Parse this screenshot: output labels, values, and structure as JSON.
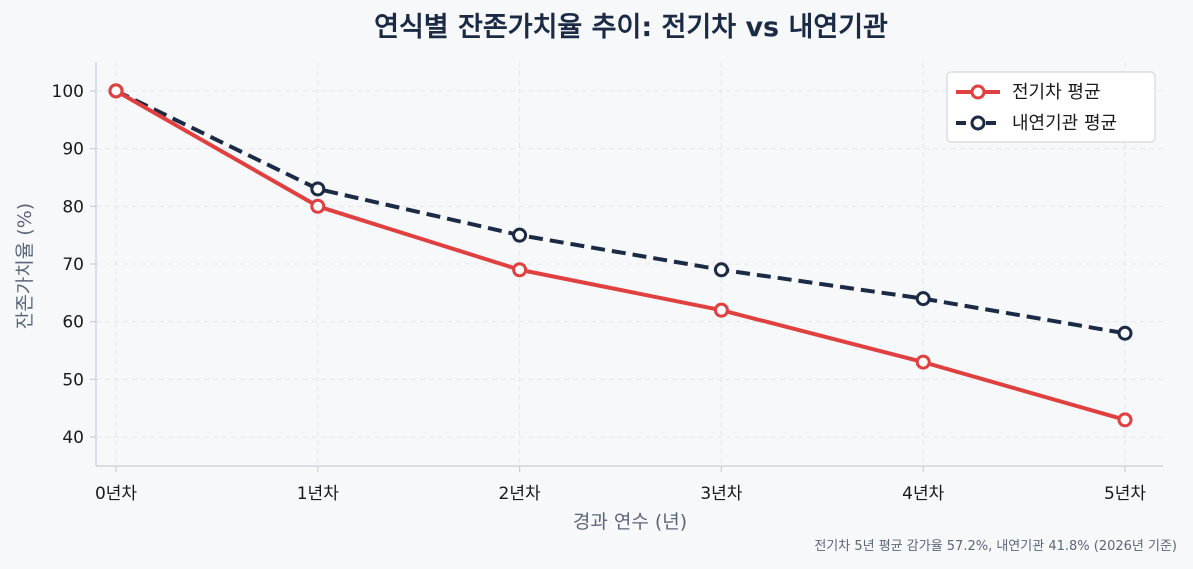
{
  "chart_data": {
    "type": "line",
    "title": "연식별 잔존가치율 추이: 전기차 vs 내연기관",
    "xlabel": "경과 연수 (년)",
    "ylabel": "잔존가치율 (%)",
    "categories": [
      "0년차",
      "1년차",
      "2년차",
      "3년차",
      "4년차",
      "5년차"
    ],
    "ylim": [
      35,
      105
    ],
    "yticks": [
      "40",
      "50",
      "60",
      "70",
      "80",
      "90",
      "100"
    ],
    "grid": true,
    "legend_position": "top-right",
    "series": [
      {
        "name": "전기차 평균",
        "values": [
          100,
          80,
          69,
          62,
          53,
          43
        ],
        "color": "#e04040",
        "style": "solid"
      },
      {
        "name": "내연기관 평균",
        "values": [
          100,
          83,
          75,
          69,
          64,
          58
        ],
        "color": "#1c2b45",
        "style": "dashed"
      }
    ],
    "annotation": "전기차 5년 평균 감가율 57.2%, 내연기관 41.8% (2026년 기준)"
  }
}
